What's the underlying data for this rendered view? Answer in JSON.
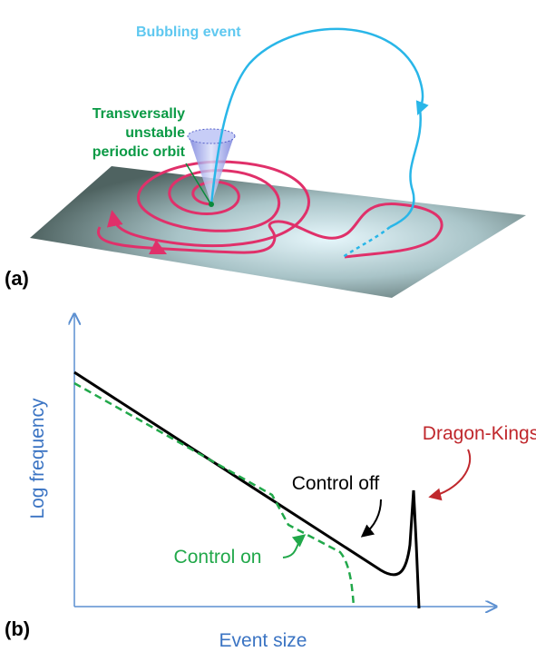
{
  "panel_a": {
    "label": "(a)",
    "bubbling_event": "Bubbling event",
    "orbit_label": [
      "Transversally",
      "unstable",
      "periodic orbit"
    ]
  },
  "panel_b": {
    "label": "(b)",
    "y_axis_label": "Log frequency",
    "x_axis_label": "Event size",
    "dragon_kings": "Dragon-Kings",
    "control_off": "Control off",
    "control_on": "Control on"
  }
}
